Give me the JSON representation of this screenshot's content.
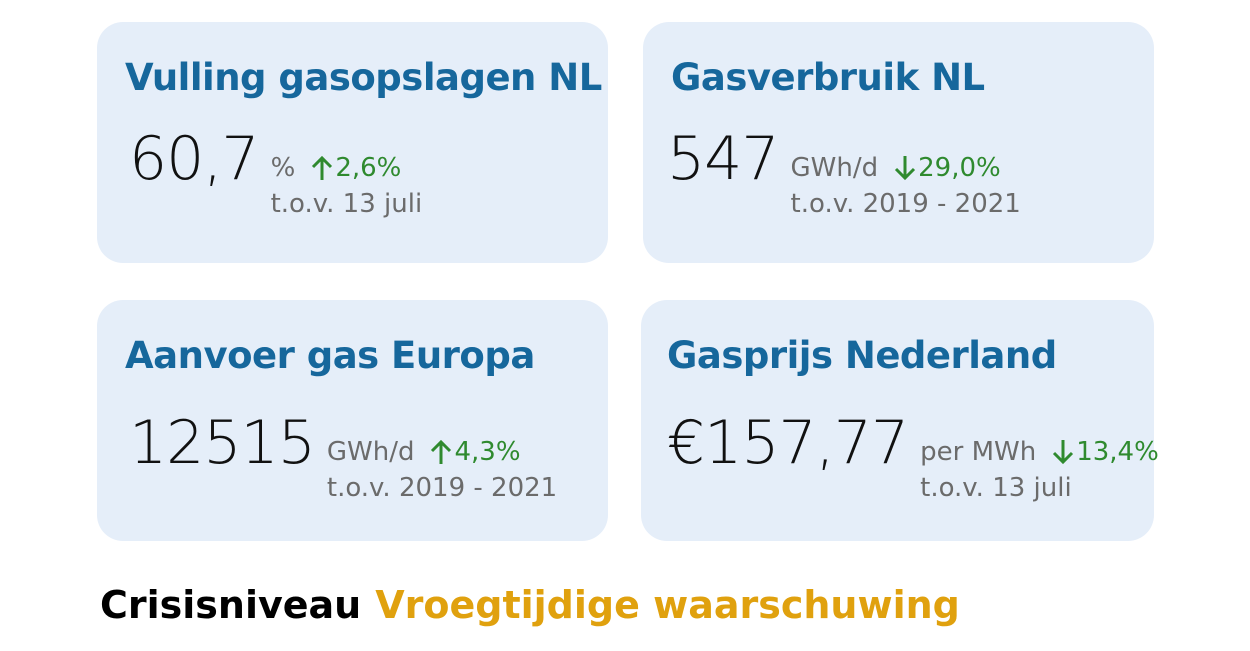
{
  "cards": [
    {
      "title": "Vulling gasopslagen NL",
      "value": "60,7",
      "unit": "%",
      "change": "2,6%",
      "reference": "t.o.v. 13 juli"
    },
    {
      "title": "Gasverbruik NL",
      "value": "547",
      "unit": "GWh/d",
      "change": "29,0%",
      "reference": "t.o.v. 2019 - 2021"
    },
    {
      "title": "Aanvoer gas Europa",
      "value": "12515",
      "unit": "GWh/d",
      "change": "4,3%",
      "reference": "t.o.v. 2019 - 2021"
    },
    {
      "title": "Gasprijs Nederland",
      "value": "€157,77",
      "unit": "per MWh",
      "change": "13,4%",
      "reference": "t.o.v. 13 juli"
    }
  ],
  "footer": {
    "label": "Crisisniveau",
    "level": "Vroegtijdige waarschuwing"
  }
}
